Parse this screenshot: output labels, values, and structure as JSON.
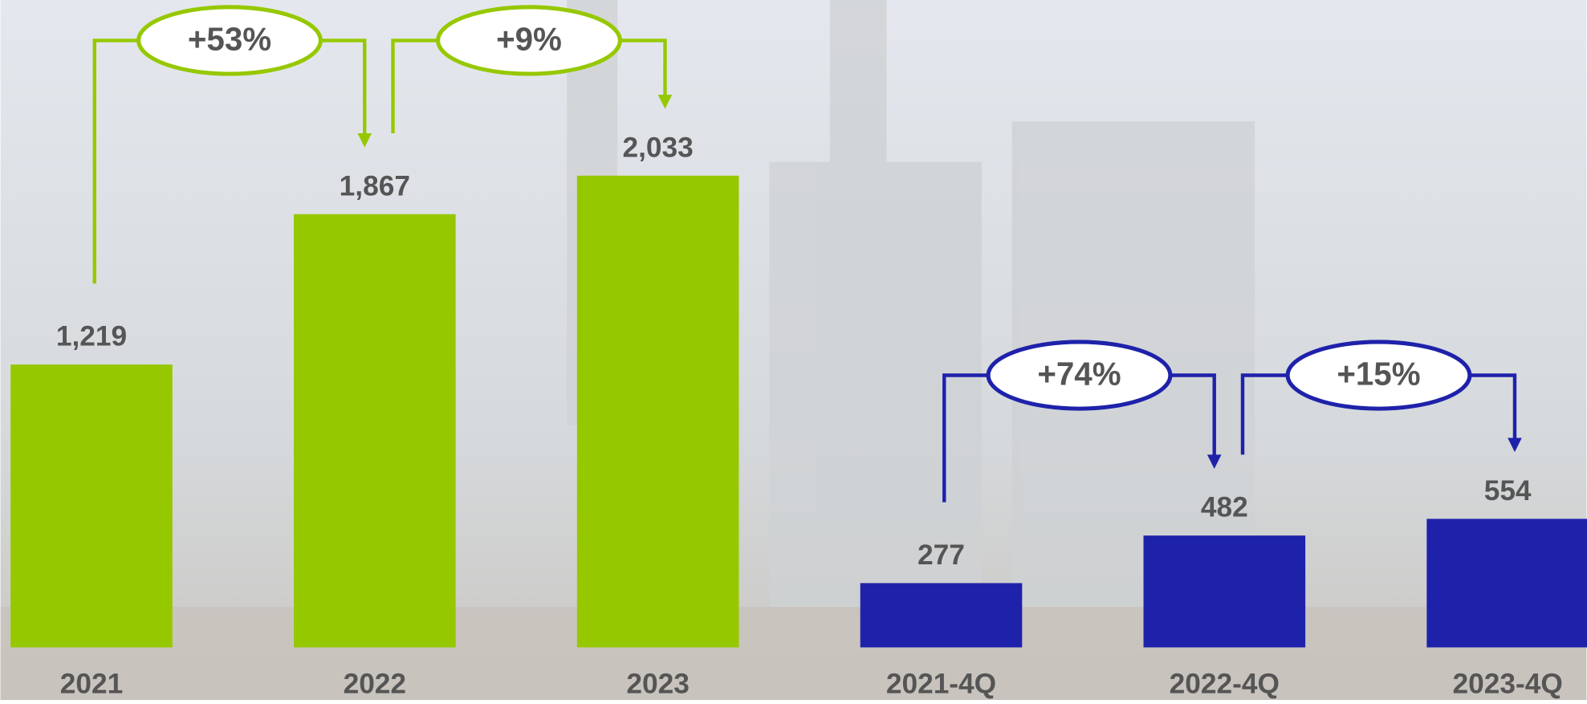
{
  "chart_data": [
    {
      "type": "bar",
      "categories": [
        "2021",
        "2022",
        "2023"
      ],
      "values": [
        1219,
        1867,
        2033
      ],
      "value_labels": [
        "1,219",
        "1,867",
        "2,033"
      ],
      "color": "#96c800",
      "ylim": [
        0,
        2790
      ],
      "annotations": [
        "+53%",
        "+9%"
      ]
    },
    {
      "type": "bar",
      "categories": [
        "2021-4Q",
        "2022-4Q",
        "2023-4Q"
      ],
      "values": [
        277,
        482,
        554
      ],
      "value_labels": [
        "277",
        "482",
        "554"
      ],
      "color": "#1e22aa",
      "ylim": [
        0,
        2790
      ],
      "annotations": [
        "+74%",
        "+15%"
      ]
    }
  ]
}
